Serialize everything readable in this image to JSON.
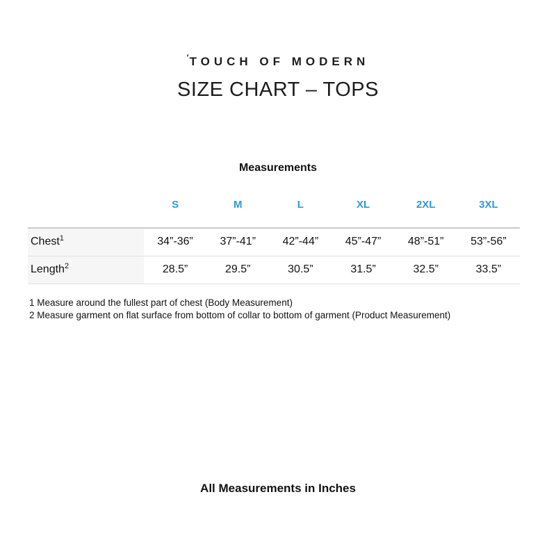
{
  "brand": {
    "logo_mark": "′",
    "logo_text": "TOUCH OF MODERN"
  },
  "title": "SIZE CHART – TOPS",
  "accent_color": "#2d9ad3",
  "table": {
    "section_label": "Measurements",
    "sizes": [
      "S",
      "M",
      "L",
      "XL",
      "2XL",
      "3XL"
    ],
    "rows": [
      {
        "label": "Chest",
        "footnote_ref": "1",
        "values": [
          "34”-36”",
          "37”-41”",
          "42”-44”",
          "45”-47”",
          "48”-51”",
          "53”-56”"
        ]
      },
      {
        "label": "Length",
        "footnote_ref": "2",
        "values": [
          "28.5”",
          "29.5”",
          "30.5”",
          "31.5”",
          "32.5”",
          "33.5”"
        ]
      }
    ]
  },
  "footnotes": [
    "1 Measure around the fullest part of chest (Body Measurement)",
    "2 Measure garment on flat surface from bottom of collar to bottom of garment (Product Measurement)"
  ],
  "footer_note": "All Measurements in Inches"
}
